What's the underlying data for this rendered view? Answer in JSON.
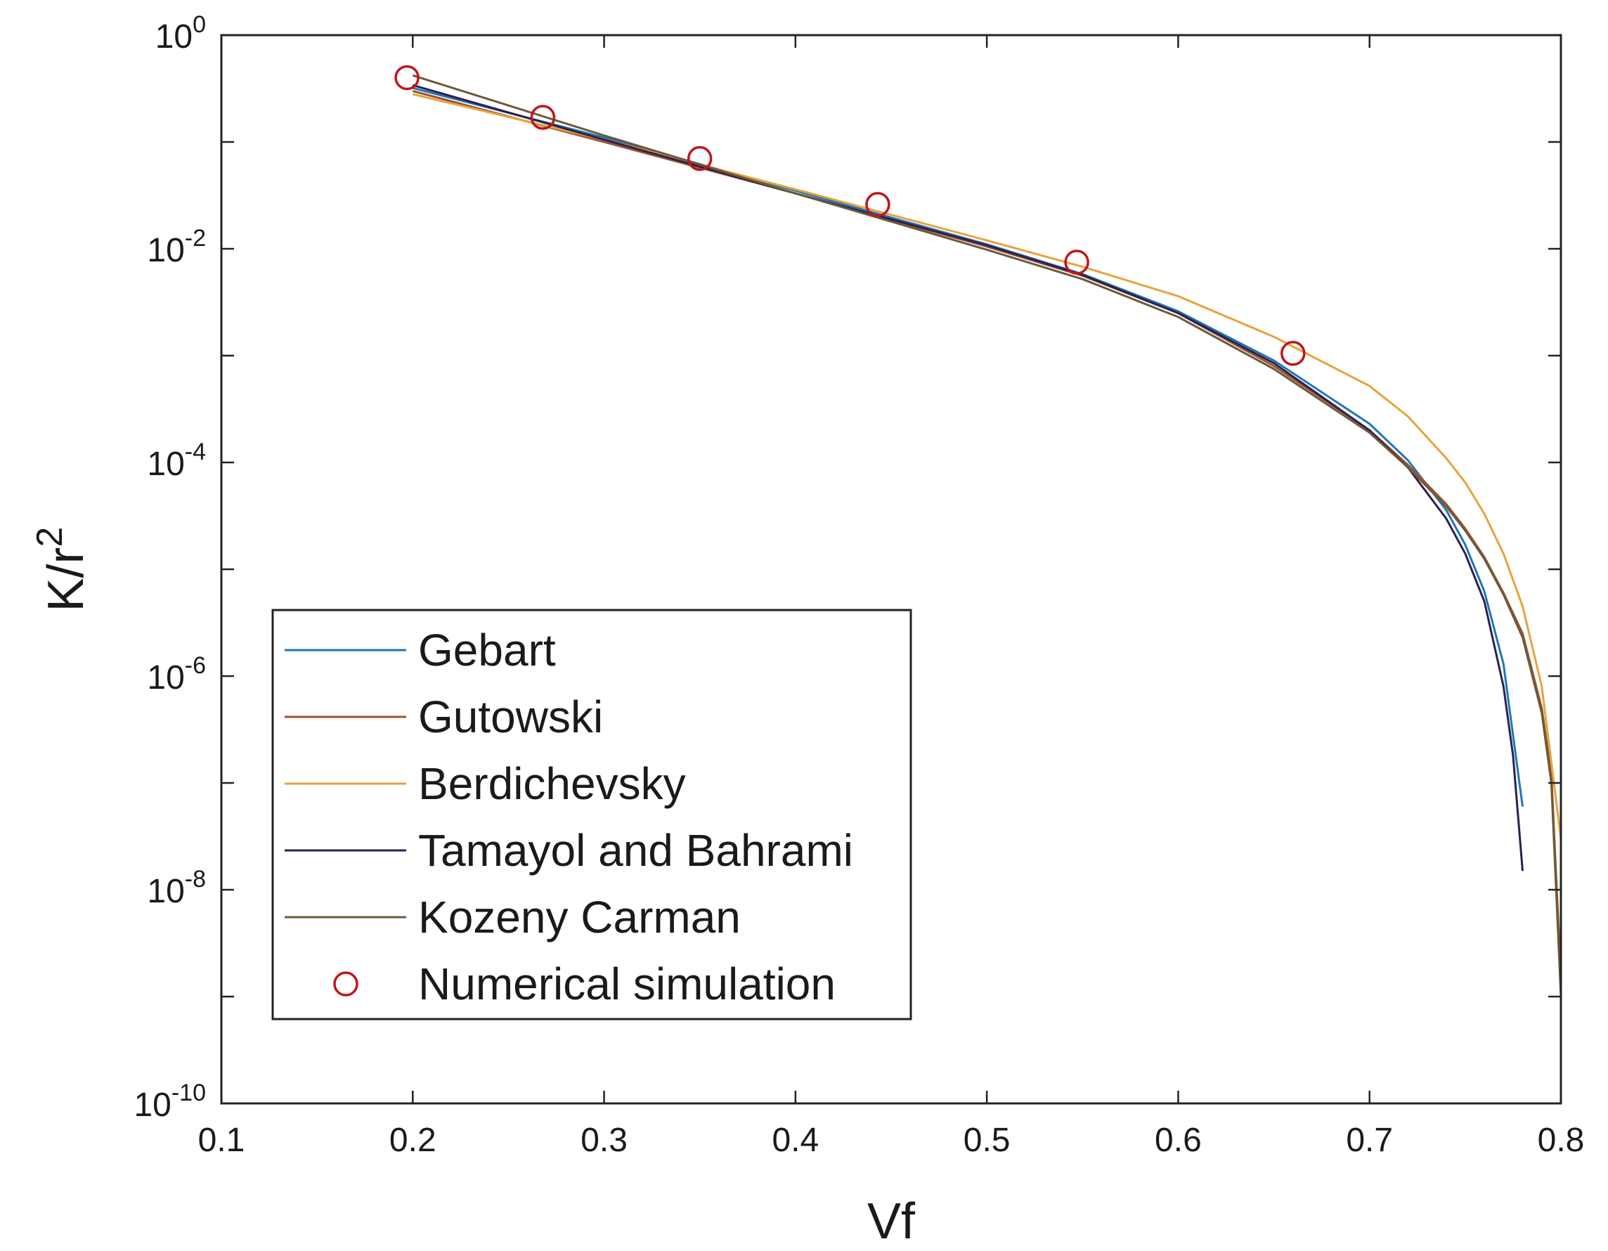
{
  "chart_data": {
    "type": "line",
    "xlabel": "Vf",
    "ylabel_base": "K/r",
    "ylabel_sup": "2",
    "xlim": [
      0.1,
      0.8
    ],
    "ylim": [
      1e-10,
      1
    ],
    "yscale": "log",
    "grid": false,
    "legend_placement": "lower-left",
    "x_ticks": [
      "0.1",
      "0.2",
      "0.3",
      "0.4",
      "0.5",
      "0.6",
      "0.7",
      "0.8"
    ],
    "y_ticks": [
      {
        "base": "10",
        "exp": "0",
        "value": 1
      },
      {
        "base": "10",
        "exp": "-2",
        "value": 0.01
      },
      {
        "base": "10",
        "exp": "-4",
        "value": 0.0001
      },
      {
        "base": "10",
        "exp": "-6",
        "value": 1e-06
      },
      {
        "base": "10",
        "exp": "-8",
        "value": 1e-08
      },
      {
        "base": "10",
        "exp": "-10",
        "value": 1e-10
      }
    ],
    "series": [
      {
        "name": "Gebart",
        "color": "#1f77b4",
        "x": [
          0.2,
          0.3,
          0.4,
          0.5,
          0.55,
          0.6,
          0.65,
          0.7,
          0.72,
          0.74,
          0.75,
          0.76,
          0.77,
          0.78
        ],
        "y": [
          0.32,
          0.11,
          0.035,
          0.011,
          0.0058,
          0.0026,
          0.0009,
          0.00023,
          0.000105,
          3.6e-05,
          1.7e-05,
          6.2e-06,
          1.3e-06,
          6e-08
        ]
      },
      {
        "name": "Gutowski",
        "color": "#a0522d",
        "x": [
          0.2,
          0.3,
          0.4,
          0.5,
          0.55,
          0.6,
          0.65,
          0.7,
          0.72,
          0.74,
          0.75,
          0.76,
          0.77,
          0.78,
          0.79,
          0.795,
          0.8
        ],
        "y": [
          0.3,
          0.1,
          0.033,
          0.0105,
          0.0056,
          0.0025,
          0.0008,
          0.0002,
          9.5e-05,
          4.1e-05,
          2.4e-05,
          1.3e-05,
          6e-06,
          2.5e-06,
          5e-07,
          1.2e-07,
          1.5e-09
        ]
      },
      {
        "name": "Berdichevsky",
        "color": "#e8a33d",
        "x": [
          0.2,
          0.3,
          0.4,
          0.5,
          0.55,
          0.6,
          0.65,
          0.7,
          0.72,
          0.74,
          0.75,
          0.76,
          0.77,
          0.78,
          0.79,
          0.8
        ],
        "y": [
          0.28,
          0.105,
          0.036,
          0.012,
          0.0068,
          0.0036,
          0.0015,
          0.00052,
          0.00027,
          0.00011,
          6.5e-05,
          3.3e-05,
          1.4e-05,
          4.5e-06,
          8e-07,
          3e-08
        ]
      },
      {
        "name": "Tamayol and Bahrami",
        "color": "#2e1f4f",
        "x": [
          0.2,
          0.3,
          0.4,
          0.5,
          0.55,
          0.6,
          0.65,
          0.7,
          0.72,
          0.74,
          0.75,
          0.76,
          0.77,
          0.775,
          0.78
        ],
        "y": [
          0.34,
          0.105,
          0.033,
          0.0108,
          0.0057,
          0.0025,
          0.00085,
          0.0002,
          9e-05,
          3e-05,
          1.4e-05,
          5e-06,
          8e-07,
          1.8e-07,
          1.5e-08
        ]
      },
      {
        "name": "Kozeny Carman",
        "color": "#6b5a3a",
        "x": [
          0.2,
          0.3,
          0.4,
          0.5,
          0.55,
          0.6,
          0.65,
          0.7,
          0.72,
          0.74,
          0.75,
          0.76,
          0.77,
          0.78,
          0.79,
          0.795,
          0.8
        ],
        "y": [
          0.42,
          0.115,
          0.033,
          0.0098,
          0.0052,
          0.0023,
          0.00075,
          0.00019,
          9e-05,
          3.9e-05,
          2.3e-05,
          1.25e-05,
          5.8e-06,
          2.3e-06,
          4.5e-07,
          1e-07,
          1e-09
        ]
      }
    ],
    "scatter": {
      "name": "Numerical simulation",
      "color": "#c0141c",
      "x": [
        0.197,
        0.268,
        0.35,
        0.443,
        0.547,
        0.66
      ],
      "y": [
        0.4,
        0.17,
        0.07,
        0.026,
        0.0075,
        0.00105
      ]
    }
  }
}
